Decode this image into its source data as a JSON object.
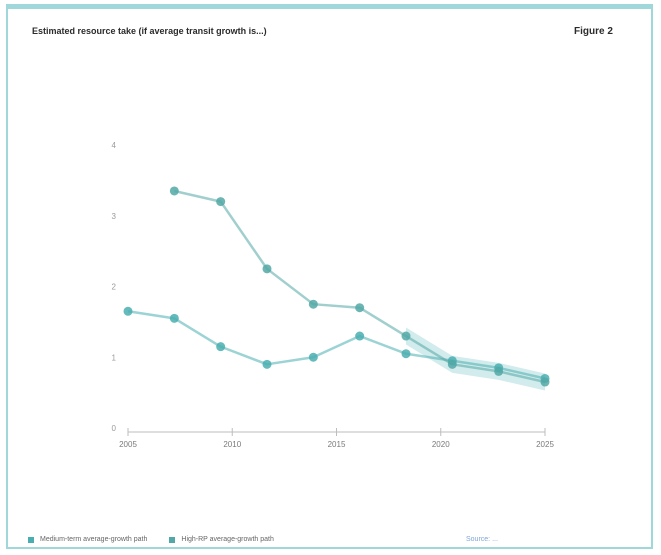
{
  "header": {
    "title": "Estimated resource take (if average transit growth is...)",
    "figure_label": "Figure 2"
  },
  "colors": {
    "frame": "#9fd7da",
    "series_a": "#4aaeb0",
    "series_b": "#52a8a6",
    "band": "#bfe3e4",
    "axis": "#bdbdbd",
    "text": "#2b2b2b"
  },
  "chart_data": {
    "type": "line",
    "title": "",
    "ylabel": "",
    "xlabel": "",
    "ylim": [
      0,
      4
    ],
    "yticks": [
      0,
      1,
      2,
      3,
      4
    ],
    "xlim": [
      1,
      10
    ],
    "xticks": [
      "2005",
      "2010",
      "2015",
      "2020",
      "2025"
    ],
    "xtick_positions": [
      1,
      3.25,
      5.5,
      7.75,
      10
    ],
    "grid": false,
    "legend_position": "bottom",
    "series": [
      {
        "name": "Medium-term average-growth path",
        "x": [
          1,
          2,
          3,
          4,
          5,
          6,
          7,
          8,
          9,
          10
        ],
        "values": [
          1.65,
          1.55,
          1.15,
          0.9,
          1.0,
          1.3,
          1.05,
          0.95,
          0.85,
          0.7
        ]
      },
      {
        "name": "High-RP average-growth path",
        "x": [
          2,
          3,
          4,
          5,
          6,
          7,
          8,
          9,
          10
        ],
        "values": [
          3.35,
          3.2,
          2.25,
          1.75,
          1.7,
          1.3,
          0.9,
          0.8,
          0.65
        ]
      }
    ]
  },
  "legend": {
    "source_text": "Source: ..."
  }
}
